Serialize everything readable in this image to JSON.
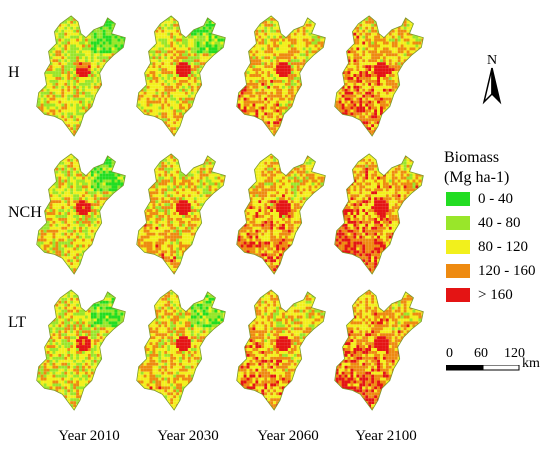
{
  "rows": [
    {
      "label": "H",
      "seed": 11,
      "level": 0.2
    },
    {
      "label": "NCH",
      "seed": 23,
      "level": 0.35
    },
    {
      "label": "LT",
      "seed": 37,
      "level": 0.3
    }
  ],
  "columns": [
    {
      "label": "Year 2010",
      "level": 0.0
    },
    {
      "label": "Year 2030",
      "level": 0.25
    },
    {
      "label": "Year 2060",
      "level": 0.5
    },
    {
      "label": "Year 2100",
      "level": 0.75
    }
  ],
  "legend": {
    "title_line1": "Biomass",
    "title_line2": "(Mg ha-1)",
    "classes": [
      {
        "label": "0 - 40",
        "color": "#22dd22"
      },
      {
        "label": "40 - 80",
        "color": "#99e62a"
      },
      {
        "label": "80 - 120",
        "color": "#f2f01c"
      },
      {
        "label": "120 - 160",
        "color": "#ee8a10"
      },
      {
        "label": "> 160",
        "color": "#e41414"
      }
    ]
  },
  "north_arrow": {
    "label": "N"
  },
  "scale": {
    "ticks": [
      "0",
      "60",
      "120"
    ],
    "unit": "km"
  }
}
